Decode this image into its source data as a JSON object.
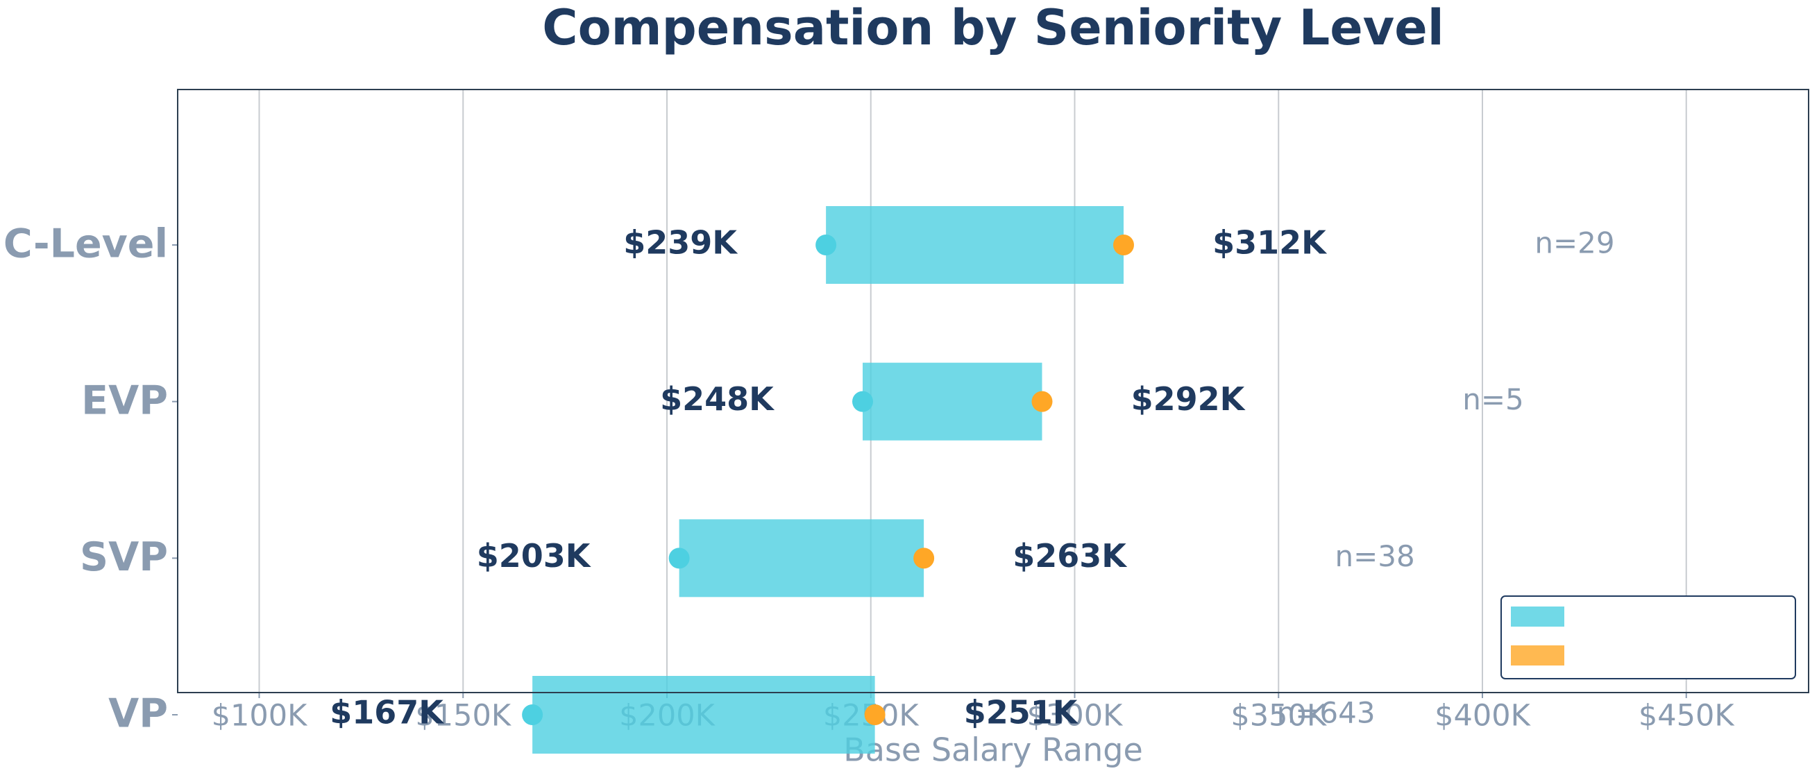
{
  "chart_data": {
    "type": "range",
    "title": "Compensation by Seniority Level",
    "x_label": "Base Salary Range",
    "categories": [
      "C-Level",
      "EVP",
      "SVP",
      "VP"
    ],
    "series": [
      {
        "color": "#4dd0e1",
        "values": [
          239,
          248,
          203,
          167
        ],
        "value_labels": [
          "$239K",
          "$248K",
          "$203K",
          "$167K"
        ]
      },
      {
        "color": "#ffa726",
        "values": [
          312,
          292,
          263,
          251
        ],
        "value_labels": [
          "$312K",
          "$292K",
          "$263K",
          "$251K"
        ]
      }
    ],
    "sample_sizes": {
      "values": [
        29,
        5,
        38,
        643
      ],
      "value_labels": [
        "n=29",
        "n=5",
        "n=38",
        "n=643"
      ]
    },
    "xlim": [
      80,
      480
    ],
    "xticks": [
      {
        "value": 100,
        "label": "$100K"
      },
      {
        "value": 150,
        "label": "$150K"
      },
      {
        "value": 200,
        "label": "$200K"
      },
      {
        "value": 250,
        "label": "$250K"
      },
      {
        "value": 300,
        "label": "$300K"
      },
      {
        "value": 350,
        "label": "$350K"
      },
      {
        "value": 400,
        "label": "$400K"
      },
      {
        "value": 450,
        "label": "$450K"
      }
    ],
    "grid": true,
    "legend": "lower right"
  }
}
